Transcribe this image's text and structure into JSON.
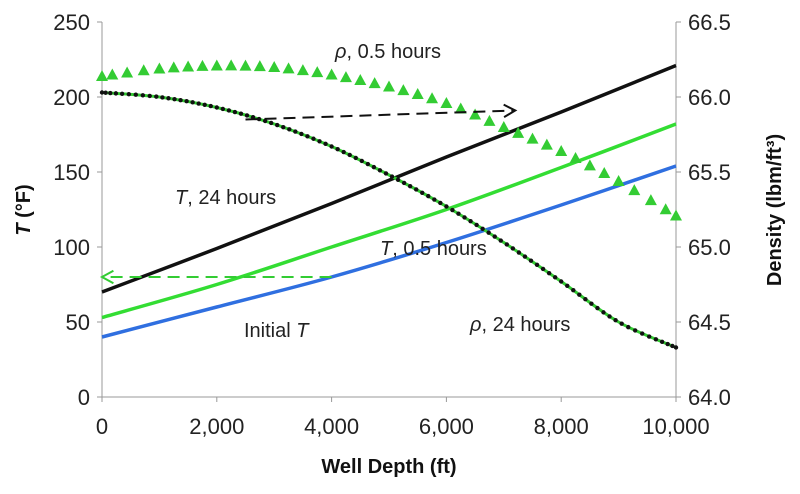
{
  "chart_data": {
    "type": "line",
    "title": "",
    "xlabel": "Well Depth (ft)",
    "ylabel_left_italic": "T",
    "ylabel_left_unit": " (°F)",
    "ylabel_right": "Density (lbm/ft³)",
    "xlim": [
      0,
      10000
    ],
    "ylim_left": [
      0,
      250
    ],
    "ylim_right": [
      64.0,
      66.5
    ],
    "x_ticks": [
      0,
      2000,
      4000,
      6000,
      8000,
      10000
    ],
    "x_tick_labels": [
      "0",
      "2,000",
      "4,000",
      "6,000",
      "8,000",
      "10,000"
    ],
    "y_left_ticks": [
      0,
      50,
      100,
      150,
      200,
      250
    ],
    "y_left_tick_labels": [
      "0",
      "50",
      "100",
      "150",
      "200",
      "250"
    ],
    "y_right_ticks": [
      64.0,
      64.5,
      65.0,
      65.5,
      66.0,
      66.5
    ],
    "y_right_tick_labels": [
      "64.0",
      "64.5",
      "65.0",
      "65.5",
      "66.0",
      "66.5"
    ],
    "grid": false,
    "series": [
      {
        "name": "Initial T",
        "axis": "left",
        "color": "#2f6fe0",
        "x": [
          0,
          2000,
          4000,
          6000,
          8000,
          10000
        ],
        "values": [
          40,
          60,
          80,
          103,
          128,
          154
        ]
      },
      {
        "name": "T, 0.5 hours",
        "axis": "left",
        "color": "#33dd33",
        "x": [
          0,
          2000,
          4000,
          6000,
          8000,
          10000
        ],
        "values": [
          53,
          75,
          100,
          125,
          153,
          182
        ]
      },
      {
        "name": "T, 24 hours",
        "axis": "left",
        "color": "#111111",
        "x": [
          0,
          2000,
          4000,
          6000,
          8000,
          10000
        ],
        "values": [
          70,
          99,
          129,
          160,
          190,
          221
        ]
      },
      {
        "name": "ρ, 0.5 hours",
        "axis": "right",
        "color": "#33cc33",
        "marker": "triangle",
        "x": [
          0,
          1000,
          2000,
          3000,
          4000,
          5000,
          6000,
          7000,
          8000,
          9000,
          10000
        ],
        "values": [
          66.14,
          66.19,
          66.21,
          66.2,
          66.15,
          66.07,
          65.96,
          65.8,
          65.64,
          65.44,
          65.21
        ]
      },
      {
        "name": "ρ, 24 hours",
        "axis": "right",
        "color": "#111111",
        "marker": "dot",
        "x": [
          0,
          1000,
          2000,
          3000,
          4000,
          5000,
          6000,
          7000,
          8000,
          9000,
          10000
        ],
        "values": [
          66.03,
          66.0,
          65.93,
          65.82,
          65.67,
          65.48,
          65.27,
          65.03,
          64.77,
          64.5,
          64.33
        ]
      }
    ],
    "annotations": {
      "rho_half": {
        "symbol": "ρ",
        "text": ", 0.5 hours"
      },
      "t_24": {
        "symbol": "T",
        "text": ", 24 hours"
      },
      "t_half": {
        "symbol": "T",
        "text": ", 0.5 hours"
      },
      "initial": {
        "text": "Initial ",
        "symbol": "T"
      },
      "rho_24": {
        "symbol": "ρ",
        "text": ", 24 hours"
      }
    },
    "arrows": [
      {
        "color": "#111111",
        "from": [
          2500,
          185
        ],
        "to": [
          7200,
          191
        ],
        "meaning": "points to right axis"
      },
      {
        "color": "#33cc33",
        "from": [
          4000,
          80
        ],
        "to": [
          0,
          80
        ],
        "meaning": "points to left axis"
      }
    ]
  }
}
